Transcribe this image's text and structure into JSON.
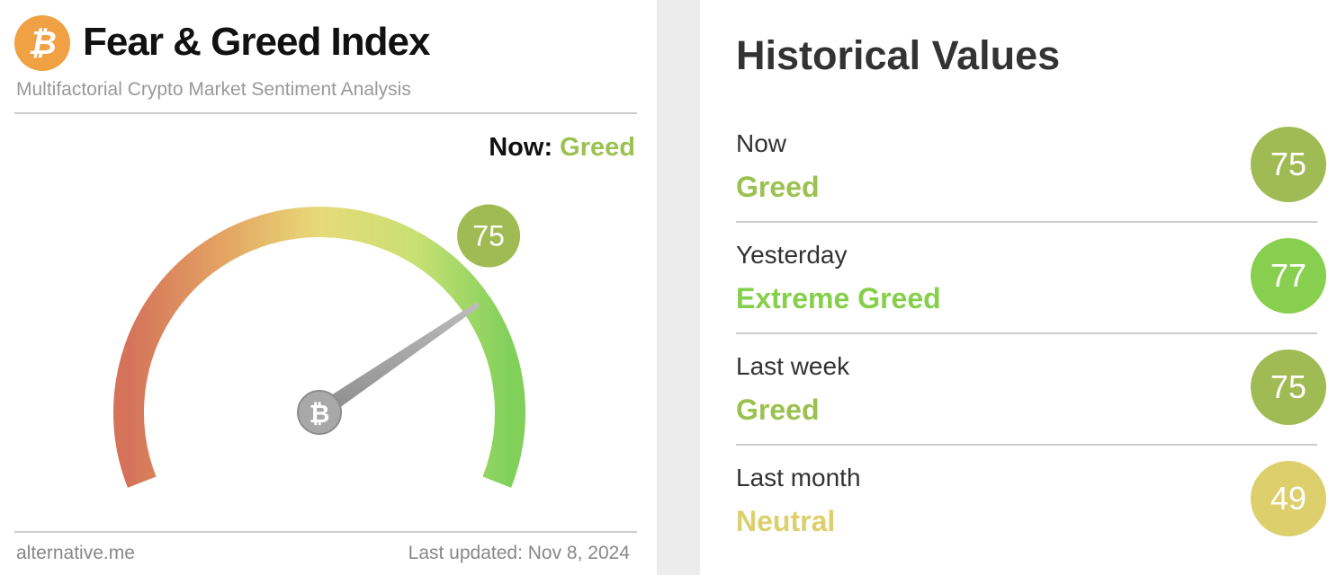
{
  "header": {
    "title": "Fear & Greed Index",
    "subtitle": "Multifactorial Crypto Market Sentiment Analysis",
    "logo_icon": "bitcoin-icon"
  },
  "now": {
    "label": "Now:",
    "classification": "Greed",
    "color": "#9bc150"
  },
  "gauge": {
    "value": 75,
    "min": 0,
    "max": 100,
    "badge_color": "#a0bb53"
  },
  "footer": {
    "source": "alternative.me",
    "updated": "Last updated: Nov 8, 2024"
  },
  "history": {
    "title": "Historical Values",
    "rows": [
      {
        "label": "Now",
        "classification": "Greed",
        "value": "75",
        "color": "#a0bb53",
        "text_color": "#9bc150"
      },
      {
        "label": "Yesterday",
        "classification": "Extreme Greed",
        "value": "77",
        "color": "#88cf4f",
        "text_color": "#86cf4a"
      },
      {
        "label": "Last week",
        "classification": "Greed",
        "value": "75",
        "color": "#a0bb53",
        "text_color": "#9bc150"
      },
      {
        "label": "Last month",
        "classification": "Neutral",
        "value": "49",
        "color": "#dccf6c",
        "text_color": "#dccf6c"
      }
    ]
  }
}
